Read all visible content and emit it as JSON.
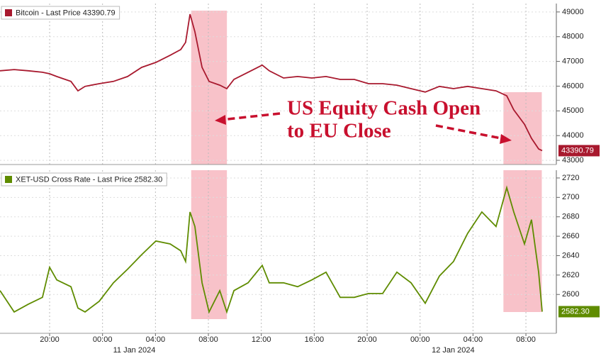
{
  "chart_data": [
    {
      "type": "line",
      "legend_text": "Bitcoin - Last Price 43390.79",
      "annotation": [
        "US Equity Cash Open",
        "to EU Close"
      ],
      "x": [
        -3.75,
        -2.68,
        -1.61,
        -0.54,
        0,
        0.54,
        1.61,
        2.14,
        2.68,
        3.75,
        4.82,
        5.89,
        6.96,
        8.03,
        9.11,
        9.91,
        10.28,
        10.61,
        10.98,
        11.52,
        12.05,
        12.86,
        13.39,
        13.93,
        15.0,
        16.07,
        16.6,
        17.68,
        18.75,
        19.82,
        20.89,
        21.96,
        23.03,
        24.1,
        25.17,
        26.25,
        27.32,
        28.39,
        29.46,
        30.53,
        31.6,
        32.67,
        33.74,
        34.55,
        35.08,
        35.89,
        36.42,
        36.96,
        37.23
      ],
      "series": [
        {
          "name": "Bitcoin",
          "color": "#a8192e",
          "last_label": "43390.79",
          "values": [
            46620,
            46670,
            46620,
            46560,
            46500,
            46390,
            46190,
            45810,
            45990,
            46100,
            46190,
            46390,
            46760,
            46960,
            47250,
            47480,
            47770,
            48910,
            48200,
            46760,
            46190,
            46040,
            45900,
            46270,
            46560,
            46850,
            46620,
            46330,
            46390,
            46330,
            46390,
            46270,
            46270,
            46100,
            46100,
            46040,
            45900,
            45760,
            45990,
            45900,
            45990,
            45900,
            45810,
            45610,
            45040,
            44460,
            43890,
            43460,
            43390.79
          ]
        }
      ],
      "xlim": [
        -3.75,
        38.3
      ],
      "ylim": [
        42830,
        49340
      ],
      "yticks": [
        43000,
        44000,
        45000,
        46000,
        47000,
        48000,
        49000
      ],
      "highlights": [
        {
          "x0": 10.7,
          "x1": 13.4
        },
        {
          "x0": 34.3,
          "x1": 37.2
        }
      ]
    },
    {
      "type": "line",
      "legend_text": "XET-USD Cross Rate - Last Price 2582.30",
      "x": [
        -3.75,
        -2.68,
        -1.61,
        -0.54,
        0,
        0.54,
        1.61,
        2.14,
        2.68,
        3.75,
        4.82,
        5.89,
        6.96,
        8.03,
        9.11,
        9.91,
        10.28,
        10.61,
        10.98,
        11.52,
        12.05,
        12.86,
        13.39,
        13.93,
        15.0,
        16.07,
        16.6,
        17.68,
        18.75,
        19.82,
        20.89,
        21.96,
        23.03,
        24.1,
        25.17,
        26.25,
        27.32,
        28.39,
        29.46,
        30.53,
        31.6,
        32.67,
        33.74,
        34.55,
        35.08,
        35.89,
        36.42,
        36.96,
        37.23
      ],
      "series": [
        {
          "name": "XET-USD Cross Rate",
          "color": "#5f8c00",
          "last_label": "2582.30",
          "values": [
            2604,
            2582,
            2590,
            2597,
            2628,
            2615,
            2608,
            2586,
            2582,
            2593,
            2612,
            2626,
            2641,
            2655,
            2652,
            2645,
            2634,
            2685,
            2670,
            2612,
            2582,
            2604,
            2582,
            2604,
            2612,
            2630,
            2612,
            2612,
            2608,
            2615,
            2623,
            2597,
            2597,
            2601,
            2601,
            2623,
            2612,
            2591,
            2619,
            2634,
            2663,
            2685,
            2670,
            2710,
            2685,
            2652,
            2677,
            2623,
            2582.3
          ]
        }
      ],
      "xlim": [
        -3.75,
        38.3
      ],
      "ylim": [
        2560,
        2728
      ],
      "yticks": [
        2600,
        2620,
        2640,
        2660,
        2680,
        2700,
        2720
      ],
      "xticks": [
        {
          "value": 0,
          "label": "20:00"
        },
        {
          "value": 4,
          "label": "00:00"
        },
        {
          "value": 8,
          "label": "04:00"
        },
        {
          "value": 12,
          "label": "08:00"
        },
        {
          "value": 16,
          "label": "12:00"
        },
        {
          "value": 20,
          "label": "16:00"
        },
        {
          "value": 24,
          "label": "20:00"
        },
        {
          "value": 28,
          "label": "00:00"
        },
        {
          "value": 32,
          "label": "04:00"
        },
        {
          "value": 36,
          "label": "08:00"
        }
      ],
      "date_ticks": [
        {
          "value": 6.4,
          "label": "11 Jan 2024"
        },
        {
          "value": 30.5,
          "label": "12 Jan 2024"
        }
      ],
      "highlights": [
        {
          "x0": 10.7,
          "x1": 13.4
        },
        {
          "x0": 34.3,
          "x1": 37.2
        }
      ]
    }
  ]
}
